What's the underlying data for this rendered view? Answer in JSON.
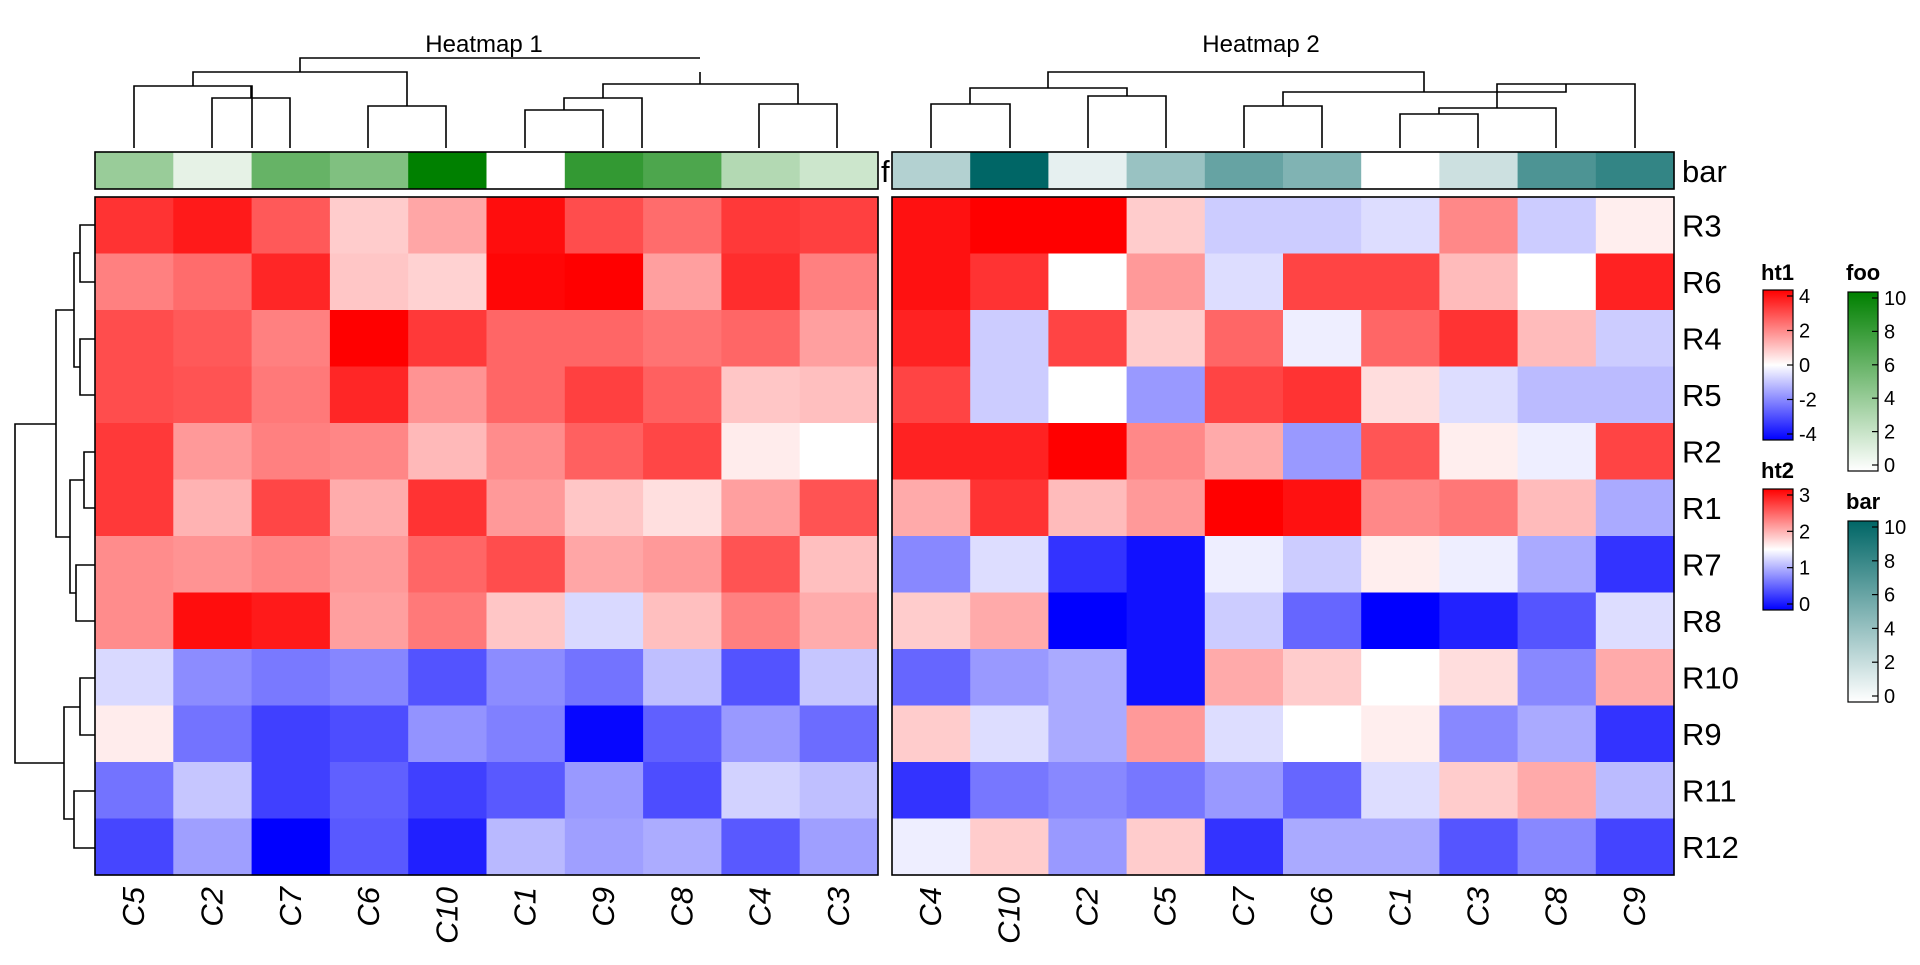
{
  "colors": {
    "hot": "#ff0000",
    "mid": "#ffffff",
    "cold": "#0000ff",
    "foo_high": "#008000",
    "bar_high": "#006666",
    "tree": "#000000"
  },
  "chart_data": [
    {
      "type": "heatmap",
      "title": "Heatmap 1",
      "legend": "ht1",
      "columns": [
        "C5",
        "C2",
        "C7",
        "C6",
        "C10",
        "C1",
        "C9",
        "C8",
        "C4",
        "C3"
      ],
      "rows": [
        "R3",
        "R6",
        "R4",
        "R5",
        "R2",
        "R1",
        "R7",
        "R8",
        "R10",
        "R9",
        "R11",
        "R12"
      ],
      "values": [
        [
          3.2,
          3.6,
          2.6,
          0.8,
          1.4,
          3.8,
          2.8,
          2.3,
          3.1,
          3.0
        ],
        [
          2.0,
          2.3,
          3.4,
          0.9,
          0.7,
          3.9,
          4.4,
          1.5,
          3.3,
          2.0
        ],
        [
          2.8,
          2.6,
          2.0,
          4.6,
          3.1,
          2.4,
          2.4,
          2.2,
          2.4,
          1.5
        ],
        [
          2.8,
          2.7,
          2.1,
          3.4,
          1.7,
          2.4,
          3.0,
          2.5,
          0.9,
          1.0
        ],
        [
          3.1,
          1.6,
          2.0,
          1.9,
          1.1,
          1.8,
          2.5,
          2.9,
          0.3,
          0.0
        ],
        [
          3.1,
          1.2,
          2.9,
          1.3,
          3.2,
          1.6,
          0.9,
          0.5,
          1.5,
          2.7
        ],
        [
          1.8,
          1.7,
          1.9,
          1.6,
          2.4,
          2.8,
          1.4,
          1.6,
          2.7,
          1.0
        ],
        [
          1.8,
          3.8,
          3.6,
          1.5,
          2.1,
          0.9,
          -0.6,
          1.0,
          2.0,
          1.3
        ],
        [
          -0.6,
          -1.8,
          -2.1,
          -1.9,
          -2.7,
          -1.8,
          -2.2,
          -1.0,
          -2.7,
          -0.9
        ],
        [
          0.3,
          -2.2,
          -3.0,
          -2.8,
          -1.7,
          -2.0,
          -3.9,
          -2.5,
          -1.6,
          -2.3
        ],
        [
          -2.2,
          -0.9,
          -3.0,
          -2.5,
          -3.0,
          -2.6,
          -1.6,
          -2.8,
          -0.7,
          -1.0
        ],
        [
          -2.9,
          -1.5,
          -4.0,
          -2.6,
          -3.5,
          -1.1,
          -1.5,
          -1.3,
          -2.6,
          -1.5
        ]
      ],
      "range": [
        -4,
        4
      ],
      "annotation": {
        "name": "foo",
        "values": [
          4,
          1,
          6,
          5,
          10,
          0,
          8,
          7,
          3,
          2
        ]
      }
    },
    {
      "type": "heatmap",
      "title": "Heatmap 2",
      "legend": "ht2",
      "columns": [
        "C4",
        "C10",
        "C2",
        "C5",
        "C7",
        "C6",
        "C1",
        "C3",
        "C8",
        "C9"
      ],
      "rows": [
        "R3",
        "R6",
        "R4",
        "R5",
        "R2",
        "R1",
        "R7",
        "R8",
        "R10",
        "R9",
        "R11",
        "R12"
      ],
      "values": [
        [
          2.9,
          3.0,
          3.0,
          1.8,
          1.2,
          1.2,
          1.3,
          2.2,
          1.2,
          1.6
        ],
        [
          2.9,
          2.7,
          1.5,
          2.1,
          1.3,
          2.6,
          2.6,
          1.9,
          1.5,
          2.8
        ],
        [
          2.8,
          1.2,
          2.6,
          1.8,
          2.4,
          1.4,
          2.4,
          2.7,
          1.9,
          1.2
        ],
        [
          2.6,
          1.2,
          1.5,
          0.9,
          2.6,
          2.7,
          1.7,
          1.3,
          1.1,
          1.1
        ],
        [
          2.8,
          2.8,
          3.0,
          2.2,
          2.0,
          0.9,
          2.5,
          1.6,
          1.4,
          2.6
        ],
        [
          2.0,
          2.7,
          1.9,
          2.1,
          3.0,
          2.9,
          2.2,
          2.3,
          1.9,
          1.0
        ],
        [
          0.8,
          1.3,
          0.3,
          0.1,
          1.4,
          1.2,
          1.6,
          1.4,
          1.0,
          0.3
        ],
        [
          1.8,
          2.0,
          0.0,
          0.1,
          1.2,
          0.6,
          0.0,
          0.2,
          0.5,
          1.3
        ],
        [
          0.6,
          0.9,
          1.0,
          0.1,
          2.0,
          1.8,
          1.5,
          1.7,
          0.8,
          2.0
        ],
        [
          1.8,
          1.3,
          1.0,
          2.1,
          1.3,
          1.5,
          1.6,
          0.8,
          1.0,
          0.3
        ],
        [
          0.3,
          0.7,
          0.8,
          0.7,
          0.9,
          0.6,
          1.3,
          1.8,
          2.0,
          1.1
        ],
        [
          1.4,
          1.8,
          0.9,
          1.8,
          0.3,
          1.0,
          1.0,
          0.5,
          0.8,
          0.4
        ]
      ],
      "range": [
        0,
        3
      ],
      "annotation": {
        "name": "bar",
        "values": [
          3,
          10,
          1,
          4,
          6,
          5,
          0,
          2,
          7,
          8
        ]
      }
    }
  ],
  "legends": [
    {
      "name": "ht1",
      "ticks": [
        "4",
        "2",
        "0",
        "-2",
        "-4"
      ],
      "range": [
        -4,
        4
      ]
    },
    {
      "name": "ht2",
      "ticks": [
        "3",
        "2",
        "1",
        "0"
      ],
      "range": [
        0,
        3
      ]
    },
    {
      "name": "foo",
      "ticks": [
        "10",
        "8",
        "6",
        "4",
        "2",
        "0"
      ],
      "range": [
        0,
        10
      ]
    },
    {
      "name": "bar",
      "ticks": [
        "10",
        "8",
        "6",
        "4",
        "2",
        "0"
      ],
      "range": [
        0,
        10
      ]
    }
  ],
  "truncated_label": "f"
}
